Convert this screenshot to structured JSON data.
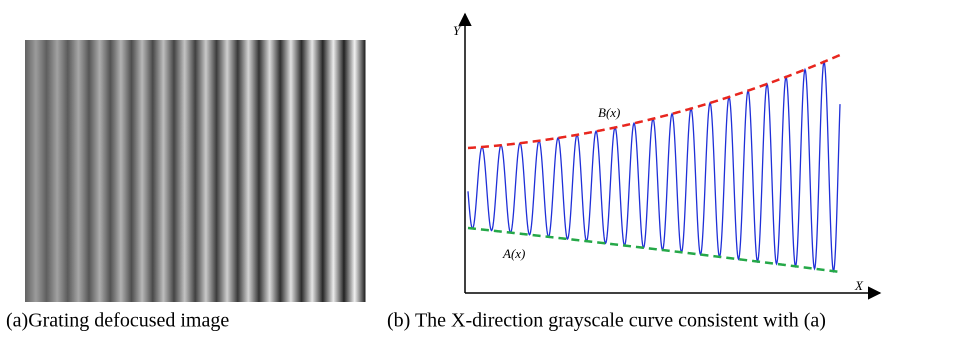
{
  "figure": {
    "panel_a": {
      "caption": "(a)Grating defocused image"
    },
    "panel_b": {
      "caption": "(b) The X-direction grayscale curve consistent with (a)",
      "y_axis_label": "Y",
      "x_axis_label": "X",
      "upper_envelope_label": "B(x)",
      "lower_envelope_label": "A(x)"
    }
  }
}
